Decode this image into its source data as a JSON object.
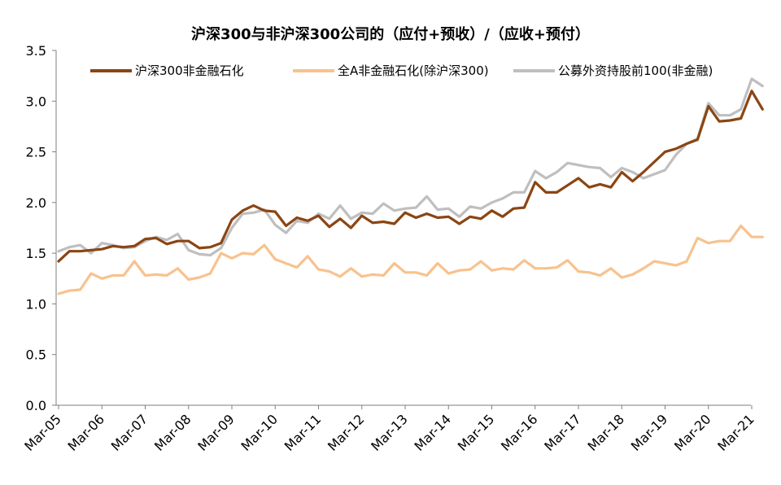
{
  "chart_data": {
    "type": "line",
    "title": "沪深300与非沪深300公司的（应付+预收）/（应收+预付）",
    "xlabel": "",
    "ylabel": "",
    "ylim": [
      0,
      3.5
    ],
    "yticks": [
      "0.0",
      "0.5",
      "1.0",
      "1.5",
      "2.0",
      "2.5",
      "3.0",
      "3.5"
    ],
    "xticks": [
      {
        "label": "Mar-05",
        "x": 2005.25
      },
      {
        "label": "Mar-06",
        "x": 2006.25
      },
      {
        "label": "Mar-07",
        "x": 2007.25
      },
      {
        "label": "Mar-08",
        "x": 2008.25
      },
      {
        "label": "Mar-09",
        "x": 2009.25
      },
      {
        "label": "Mar-10",
        "x": 2010.25
      },
      {
        "label": "Mar-11",
        "x": 2011.25
      },
      {
        "label": "Mar-12",
        "x": 2012.25
      },
      {
        "label": "Mar-13",
        "x": 2013.25
      },
      {
        "label": "Mar-14",
        "x": 2014.25
      },
      {
        "label": "Mar-15",
        "x": 2015.25
      },
      {
        "label": "Mar-16",
        "x": 2016.25
      },
      {
        "label": "Mar-17",
        "x": 2017.25
      },
      {
        "label": "Mar-18",
        "x": 2018.25
      },
      {
        "label": "Mar-19",
        "x": 2019.25
      },
      {
        "label": "Mar-20",
        "x": 2020.25
      },
      {
        "label": "Mar-21",
        "x": 2021.25
      }
    ],
    "xlim": [
      2005.25,
      2021.5
    ],
    "grid": false,
    "legend_position": "top",
    "series": [
      {
        "name": "沪深300非金融石化",
        "color": "#8B4513",
        "points": [
          [
            2005.25,
            1.42
          ],
          [
            2005.5,
            1.52
          ],
          [
            2005.75,
            1.52
          ],
          [
            2006.0,
            1.53
          ],
          [
            2006.25,
            1.54
          ],
          [
            2006.5,
            1.57
          ],
          [
            2006.75,
            1.56
          ],
          [
            2007.0,
            1.57
          ],
          [
            2007.25,
            1.64
          ],
          [
            2007.5,
            1.65
          ],
          [
            2007.75,
            1.59
          ],
          [
            2008.0,
            1.62
          ],
          [
            2008.25,
            1.62
          ],
          [
            2008.5,
            1.55
          ],
          [
            2008.75,
            1.56
          ],
          [
            2009.0,
            1.6
          ],
          [
            2009.25,
            1.83
          ],
          [
            2009.5,
            1.92
          ],
          [
            2009.75,
            1.97
          ],
          [
            2010.0,
            1.92
          ],
          [
            2010.25,
            1.91
          ],
          [
            2010.5,
            1.77
          ],
          [
            2010.75,
            1.85
          ],
          [
            2011.0,
            1.82
          ],
          [
            2011.25,
            1.87
          ],
          [
            2011.5,
            1.76
          ],
          [
            2011.75,
            1.84
          ],
          [
            2012.0,
            1.75
          ],
          [
            2012.25,
            1.87
          ],
          [
            2012.5,
            1.8
          ],
          [
            2012.75,
            1.81
          ],
          [
            2013.0,
            1.79
          ],
          [
            2013.25,
            1.9
          ],
          [
            2013.5,
            1.85
          ],
          [
            2013.75,
            1.89
          ],
          [
            2014.0,
            1.85
          ],
          [
            2014.25,
            1.86
          ],
          [
            2014.5,
            1.79
          ],
          [
            2014.75,
            1.86
          ],
          [
            2015.0,
            1.84
          ],
          [
            2015.25,
            1.92
          ],
          [
            2015.5,
            1.86
          ],
          [
            2015.75,
            1.94
          ],
          [
            2016.0,
            1.95
          ],
          [
            2016.25,
            2.2
          ],
          [
            2016.5,
            2.1
          ],
          [
            2016.75,
            2.1
          ],
          [
            2017.0,
            2.17
          ],
          [
            2017.25,
            2.24
          ],
          [
            2017.5,
            2.15
          ],
          [
            2017.75,
            2.18
          ],
          [
            2018.0,
            2.15
          ],
          [
            2018.25,
            2.3
          ],
          [
            2018.5,
            2.21
          ],
          [
            2018.75,
            2.3
          ],
          [
            2019.0,
            2.4
          ],
          [
            2019.25,
            2.5
          ],
          [
            2019.5,
            2.53
          ],
          [
            2019.75,
            2.58
          ],
          [
            2020.0,
            2.62
          ],
          [
            2020.25,
            2.95
          ],
          [
            2020.5,
            2.8
          ],
          [
            2020.75,
            2.81
          ],
          [
            2021.0,
            2.83
          ],
          [
            2021.25,
            3.1
          ],
          [
            2021.5,
            2.92
          ]
        ]
      },
      {
        "name": "全A非金融石化(除沪深300)",
        "color": "#F8C28E",
        "points": [
          [
            2005.25,
            1.1
          ],
          [
            2005.5,
            1.13
          ],
          [
            2005.75,
            1.14
          ],
          [
            2006.0,
            1.3
          ],
          [
            2006.25,
            1.25
          ],
          [
            2006.5,
            1.28
          ],
          [
            2006.75,
            1.28
          ],
          [
            2007.0,
            1.42
          ],
          [
            2007.25,
            1.28
          ],
          [
            2007.5,
            1.29
          ],
          [
            2007.75,
            1.28
          ],
          [
            2008.0,
            1.35
          ],
          [
            2008.25,
            1.24
          ],
          [
            2008.5,
            1.26
          ],
          [
            2008.75,
            1.3
          ],
          [
            2009.0,
            1.5
          ],
          [
            2009.25,
            1.45
          ],
          [
            2009.5,
            1.5
          ],
          [
            2009.75,
            1.49
          ],
          [
            2010.0,
            1.58
          ],
          [
            2010.25,
            1.44
          ],
          [
            2010.5,
            1.4
          ],
          [
            2010.75,
            1.36
          ],
          [
            2011.0,
            1.47
          ],
          [
            2011.25,
            1.34
          ],
          [
            2011.5,
            1.32
          ],
          [
            2011.75,
            1.27
          ],
          [
            2012.0,
            1.35
          ],
          [
            2012.25,
            1.27
          ],
          [
            2012.5,
            1.29
          ],
          [
            2012.75,
            1.28
          ],
          [
            2013.0,
            1.4
          ],
          [
            2013.25,
            1.31
          ],
          [
            2013.5,
            1.31
          ],
          [
            2013.75,
            1.28
          ],
          [
            2014.0,
            1.4
          ],
          [
            2014.25,
            1.3
          ],
          [
            2014.5,
            1.33
          ],
          [
            2014.75,
            1.34
          ],
          [
            2015.0,
            1.42
          ],
          [
            2015.25,
            1.33
          ],
          [
            2015.5,
            1.35
          ],
          [
            2015.75,
            1.34
          ],
          [
            2016.0,
            1.43
          ],
          [
            2016.25,
            1.35
          ],
          [
            2016.5,
            1.35
          ],
          [
            2016.75,
            1.36
          ],
          [
            2017.0,
            1.43
          ],
          [
            2017.25,
            1.32
          ],
          [
            2017.5,
            1.31
          ],
          [
            2017.75,
            1.28
          ],
          [
            2018.0,
            1.35
          ],
          [
            2018.25,
            1.26
          ],
          [
            2018.5,
            1.29
          ],
          [
            2018.75,
            1.35
          ],
          [
            2019.0,
            1.42
          ],
          [
            2019.25,
            1.4
          ],
          [
            2019.5,
            1.38
          ],
          [
            2019.75,
            1.42
          ],
          [
            2020.0,
            1.65
          ],
          [
            2020.25,
            1.6
          ],
          [
            2020.5,
            1.62
          ],
          [
            2020.75,
            1.62
          ],
          [
            2021.0,
            1.77
          ],
          [
            2021.25,
            1.66
          ],
          [
            2021.5,
            1.66
          ]
        ]
      },
      {
        "name": "公募外资持股前100(非金融)",
        "color": "#BFBFBF",
        "points": [
          [
            2005.25,
            1.52
          ],
          [
            2005.5,
            1.56
          ],
          [
            2005.75,
            1.58
          ],
          [
            2006.0,
            1.5
          ],
          [
            2006.25,
            1.6
          ],
          [
            2006.5,
            1.58
          ],
          [
            2006.75,
            1.55
          ],
          [
            2007.0,
            1.56
          ],
          [
            2007.25,
            1.62
          ],
          [
            2007.5,
            1.66
          ],
          [
            2007.75,
            1.63
          ],
          [
            2008.0,
            1.69
          ],
          [
            2008.25,
            1.53
          ],
          [
            2008.5,
            1.49
          ],
          [
            2008.75,
            1.48
          ],
          [
            2009.0,
            1.55
          ],
          [
            2009.25,
            1.75
          ],
          [
            2009.5,
            1.89
          ],
          [
            2009.75,
            1.9
          ],
          [
            2010.0,
            1.93
          ],
          [
            2010.25,
            1.78
          ],
          [
            2010.5,
            1.7
          ],
          [
            2010.75,
            1.82
          ],
          [
            2011.0,
            1.8
          ],
          [
            2011.25,
            1.89
          ],
          [
            2011.5,
            1.84
          ],
          [
            2011.75,
            1.97
          ],
          [
            2012.0,
            1.84
          ],
          [
            2012.25,
            1.9
          ],
          [
            2012.5,
            1.89
          ],
          [
            2012.75,
            1.99
          ],
          [
            2013.0,
            1.92
          ],
          [
            2013.25,
            1.94
          ],
          [
            2013.5,
            1.95
          ],
          [
            2013.75,
            2.06
          ],
          [
            2014.0,
            1.93
          ],
          [
            2014.25,
            1.94
          ],
          [
            2014.5,
            1.86
          ],
          [
            2014.75,
            1.96
          ],
          [
            2015.0,
            1.94
          ],
          [
            2015.25,
            2.0
          ],
          [
            2015.5,
            2.04
          ],
          [
            2015.75,
            2.1
          ],
          [
            2016.0,
            2.1
          ],
          [
            2016.25,
            2.31
          ],
          [
            2016.5,
            2.24
          ],
          [
            2016.75,
            2.3
          ],
          [
            2017.0,
            2.39
          ],
          [
            2017.25,
            2.37
          ],
          [
            2017.5,
            2.35
          ],
          [
            2017.75,
            2.34
          ],
          [
            2018.0,
            2.25
          ],
          [
            2018.25,
            2.34
          ],
          [
            2018.5,
            2.3
          ],
          [
            2018.75,
            2.24
          ],
          [
            2019.0,
            2.28
          ],
          [
            2019.25,
            2.32
          ],
          [
            2019.5,
            2.47
          ],
          [
            2019.75,
            2.58
          ],
          [
            2020.0,
            2.63
          ],
          [
            2020.25,
            2.98
          ],
          [
            2020.5,
            2.86
          ],
          [
            2020.75,
            2.86
          ],
          [
            2021.0,
            2.92
          ],
          [
            2021.25,
            3.22
          ],
          [
            2021.5,
            3.15
          ]
        ]
      }
    ]
  }
}
